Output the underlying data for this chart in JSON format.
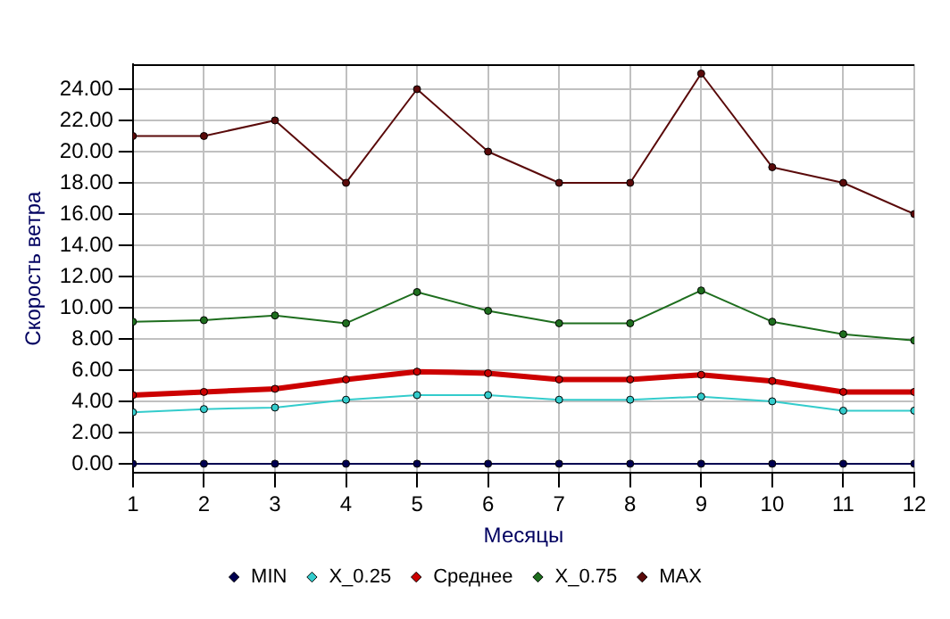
{
  "chart_data": {
    "type": "line",
    "xlabel": "Месяцы",
    "ylabel": "Скорость ветра",
    "x": [
      1,
      2,
      3,
      4,
      5,
      6,
      7,
      8,
      9,
      10,
      11,
      12
    ],
    "xlim": [
      1,
      12
    ],
    "xticks": [
      1,
      2,
      3,
      4,
      5,
      6,
      7,
      8,
      9,
      10,
      11,
      12
    ],
    "ylim": [
      -0.6,
      25.6
    ],
    "yticks": [
      {
        "value": 0,
        "label": "0.00"
      },
      {
        "value": 2,
        "label": "2.00"
      },
      {
        "value": 4,
        "label": "4.00"
      },
      {
        "value": 6,
        "label": "6.00"
      },
      {
        "value": 8,
        "label": "8.00"
      },
      {
        "value": 10,
        "label": "10.00"
      },
      {
        "value": 12,
        "label": "12.00"
      },
      {
        "value": 14,
        "label": "14.00"
      },
      {
        "value": 16,
        "label": "16.00"
      },
      {
        "value": 18,
        "label": "18.00"
      },
      {
        "value": 20,
        "label": "20.00"
      },
      {
        "value": 22,
        "label": "22.00"
      },
      {
        "value": 24,
        "label": "24.00"
      }
    ],
    "grid": true,
    "legend": "bottom",
    "marker": "circle",
    "line_style": "solid",
    "series": [
      {
        "name": "MIN",
        "color": "#000050",
        "values": [
          0,
          0,
          0,
          0,
          0,
          0,
          0,
          0,
          0,
          0,
          0,
          0
        ]
      },
      {
        "name": "X_0.25",
        "color": "#33cccc",
        "values": [
          3.3,
          3.5,
          3.6,
          4.1,
          4.4,
          4.4,
          4.1,
          4.1,
          4.3,
          4.0,
          3.4,
          3.4
        ]
      },
      {
        "name": "Среднее",
        "color": "#cc0000",
        "values": [
          4.4,
          4.6,
          4.8,
          5.4,
          5.9,
          5.8,
          5.4,
          5.4,
          5.7,
          5.3,
          4.6,
          4.6
        ]
      },
      {
        "name": "X_0.75",
        "color": "#1e6e1e",
        "values": [
          9.1,
          9.2,
          9.5,
          9.0,
          11.0,
          9.8,
          9.0,
          9.0,
          11.1,
          9.1,
          8.3,
          7.9
        ]
      },
      {
        "name": "MAX",
        "color": "#5a0a0a",
        "values": [
          21,
          21,
          22,
          18,
          24,
          20,
          18,
          18,
          25,
          19,
          18,
          16
        ]
      }
    ]
  }
}
